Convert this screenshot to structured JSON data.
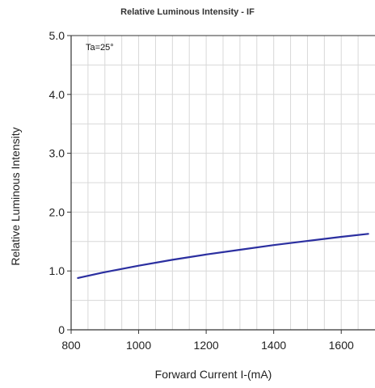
{
  "chart_data": {
    "type": "line",
    "title": "Relative Luminous Intensity - IF",
    "xlabel": "Forward Current I-(mA)",
    "ylabel": "Relative Luminous Intensity",
    "annotation": "Ta=25°",
    "xlim": [
      800,
      1700
    ],
    "ylim": [
      0,
      5.0
    ],
    "xticks": [
      "800",
      "1000",
      "1200",
      "1400",
      "1600"
    ],
    "yticks": [
      "0",
      "1.0",
      "2.0",
      "3.0",
      "4.0",
      "5.0"
    ],
    "grid": true,
    "series": [
      {
        "x": [
          820,
          900,
          1000,
          1100,
          1200,
          1300,
          1400,
          1500,
          1600,
          1680
        ],
        "y": [
          0.88,
          0.98,
          1.09,
          1.19,
          1.28,
          1.36,
          1.44,
          1.51,
          1.58,
          1.63
        ]
      }
    ],
    "colors": {
      "line": "#2b2fa0",
      "grid": "#d8d8d8",
      "axis": "#333333"
    }
  }
}
